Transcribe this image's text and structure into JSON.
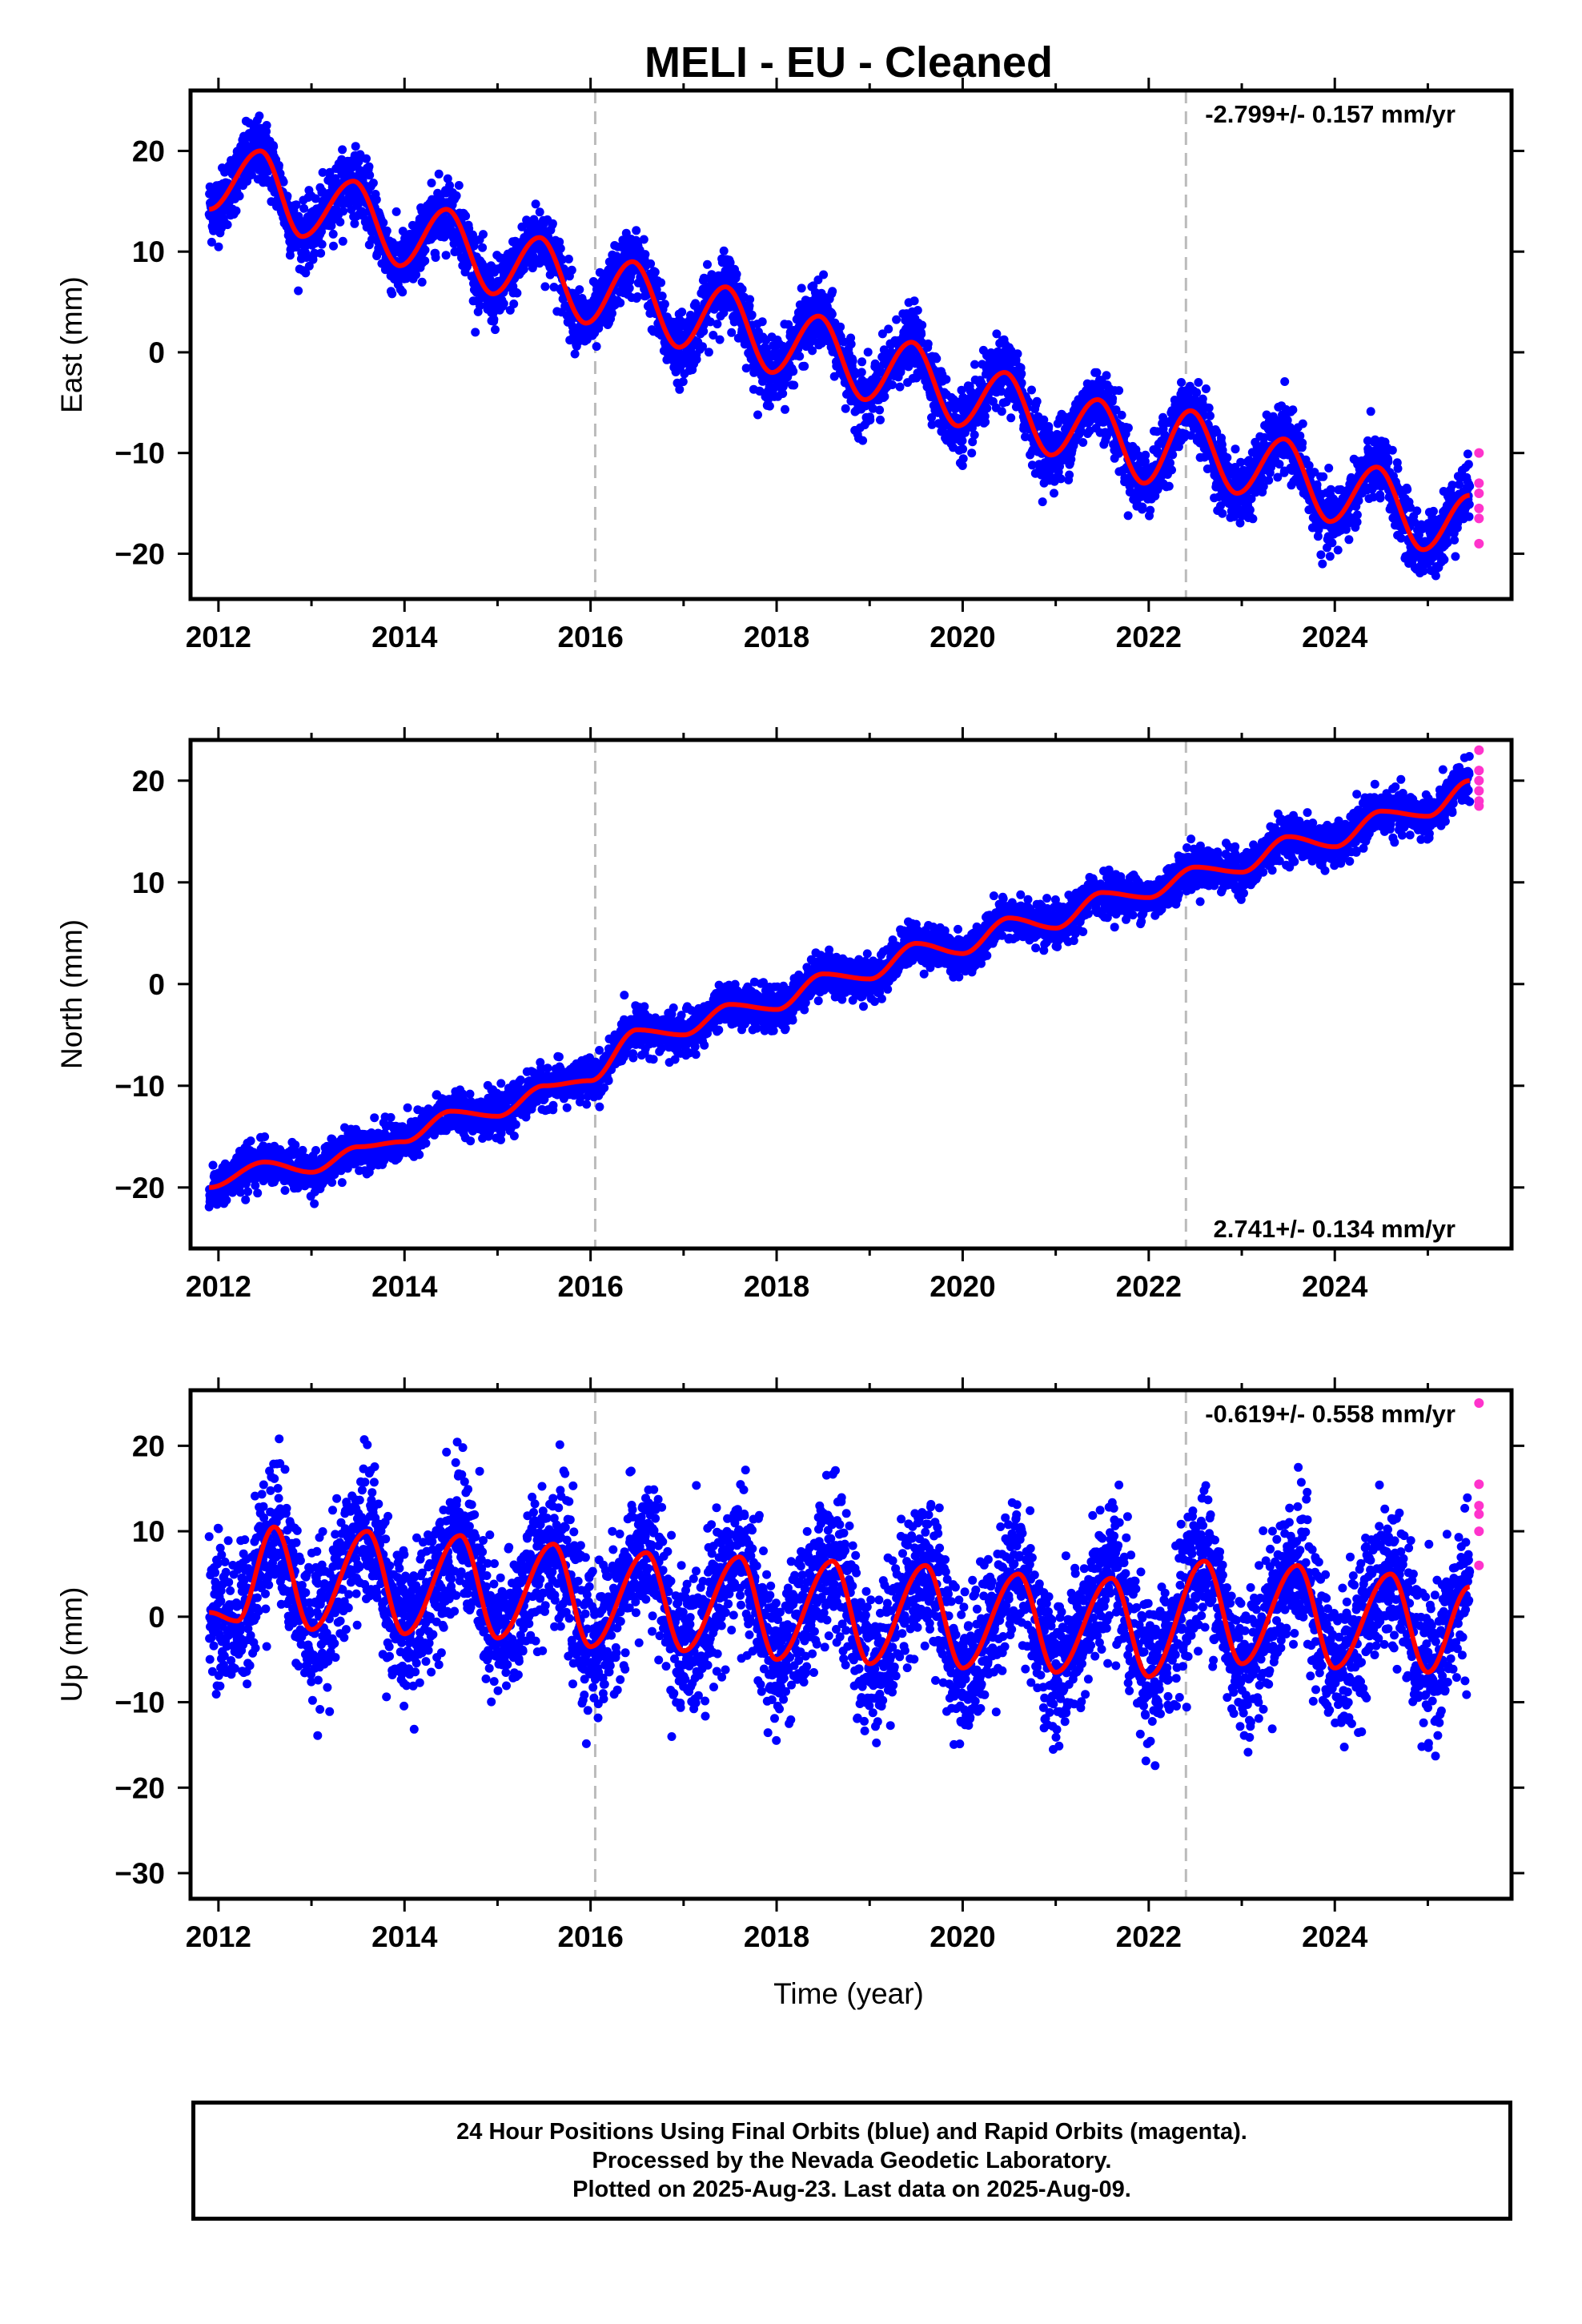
{
  "title": "MELI  - EU - Cleaned",
  "xlabel": "Time (year)",
  "colors": {
    "final": "#0000ff",
    "rapid": "#ff33cc",
    "model": "#ff0000",
    "breaks": "#bbbbbb",
    "axes": "#000000"
  },
  "caption": {
    "line1": "24 Hour Positions Using Final Orbits (blue) and Rapid Orbits (magenta).",
    "line2": "Processed by the Nevada Geodetic Laboratory.",
    "line3": "Plotted on 2025-Aug-23. Last data on 2025-Aug-09."
  },
  "chart_data": [
    {
      "type": "scatter",
      "component": "East",
      "ylabel": "East (mm)",
      "rate_label": "-2.799+/- 0.157 mm/yr",
      "rate_label_position": "top-right",
      "xlim": [
        2011.7,
        2025.9
      ],
      "ylim": [
        -24.5,
        26
      ],
      "xticks": [
        2012,
        2014,
        2016,
        2018,
        2020,
        2022,
        2024
      ],
      "yticks": [
        -20,
        -10,
        0,
        10,
        20
      ],
      "data_range": [
        2011.9,
        2025.45
      ],
      "trend": {
        "intercept_at_2012": 17.0,
        "rate_mm_per_yr": -2.799
      },
      "seasonal": {
        "amplitude": 3.5,
        "phase_year": 0.45
      },
      "scatter_noise_mm": 1.6,
      "equipment_breaks": [
        2016.05,
        2022.4
      ],
      "model_series": [
        {
          "x": 2011.9,
          "y": 14.2
        },
        {
          "x": 2012.45,
          "y": 20.0
        },
        {
          "x": 2012.9,
          "y": 11.5
        },
        {
          "x": 2013.45,
          "y": 17.0
        },
        {
          "x": 2013.95,
          "y": 8.6
        },
        {
          "x": 2014.45,
          "y": 14.2
        },
        {
          "x": 2014.95,
          "y": 5.8
        },
        {
          "x": 2015.45,
          "y": 11.4
        },
        {
          "x": 2015.95,
          "y": 2.9
        },
        {
          "x": 2016.45,
          "y": 9.0
        },
        {
          "x": 2016.95,
          "y": 0.5
        },
        {
          "x": 2017.45,
          "y": 6.5
        },
        {
          "x": 2017.95,
          "y": -2.0
        },
        {
          "x": 2018.45,
          "y": 3.6
        },
        {
          "x": 2018.95,
          "y": -4.7
        },
        {
          "x": 2019.45,
          "y": 1.0
        },
        {
          "x": 2019.95,
          "y": -7.3
        },
        {
          "x": 2020.45,
          "y": -2.0
        },
        {
          "x": 2020.95,
          "y": -10.2
        },
        {
          "x": 2021.45,
          "y": -4.7
        },
        {
          "x": 2021.95,
          "y": -13.0
        },
        {
          "x": 2022.45,
          "y": -5.8
        },
        {
          "x": 2022.95,
          "y": -14.0
        },
        {
          "x": 2023.45,
          "y": -8.6
        },
        {
          "x": 2023.95,
          "y": -16.8
        },
        {
          "x": 2024.45,
          "y": -11.4
        },
        {
          "x": 2024.95,
          "y": -19.6
        },
        {
          "x": 2025.45,
          "y": -14.2
        }
      ],
      "rapid_points": [
        {
          "x": 2025.55,
          "y": -10.0
        },
        {
          "x": 2025.55,
          "y": -13.0
        },
        {
          "x": 2025.55,
          "y": -14.0
        },
        {
          "x": 2025.55,
          "y": -15.5
        },
        {
          "x": 2025.55,
          "y": -16.5
        },
        {
          "x": 2025.55,
          "y": -19.0
        }
      ]
    },
    {
      "type": "scatter",
      "component": "North",
      "ylabel": "North (mm)",
      "rate_label": "2.741+/- 0.134 mm/yr",
      "rate_label_position": "bottom-right",
      "xlim": [
        2011.7,
        2025.9
      ],
      "ylim": [
        -26,
        24
      ],
      "xticks": [
        2012,
        2014,
        2016,
        2018,
        2020,
        2022,
        2024
      ],
      "yticks": [
        -20,
        -10,
        0,
        10,
        20
      ],
      "data_range": [
        2011.9,
        2025.45
      ],
      "trend": {
        "intercept_at_2012": -20.0,
        "rate_mm_per_yr": 2.741
      },
      "seasonal": {
        "amplitude": 0.9,
        "phase_year": 0.55
      },
      "scatter_noise_mm": 1.0,
      "equipment_breaks": [
        2016.05,
        2022.4
      ],
      "model_series": [
        {
          "x": 2011.9,
          "y": -20.0
        },
        {
          "x": 2012.5,
          "y": -17.5
        },
        {
          "x": 2013.0,
          "y": -18.5
        },
        {
          "x": 2013.5,
          "y": -16.0
        },
        {
          "x": 2014.0,
          "y": -15.5
        },
        {
          "x": 2014.5,
          "y": -12.5
        },
        {
          "x": 2015.0,
          "y": -13.0
        },
        {
          "x": 2015.5,
          "y": -10.0
        },
        {
          "x": 2016.0,
          "y": -9.5
        },
        {
          "x": 2016.5,
          "y": -4.5
        },
        {
          "x": 2017.0,
          "y": -5.0
        },
        {
          "x": 2017.5,
          "y": -2.0
        },
        {
          "x": 2018.0,
          "y": -2.5
        },
        {
          "x": 2018.5,
          "y": 1.0
        },
        {
          "x": 2019.0,
          "y": 0.5
        },
        {
          "x": 2019.5,
          "y": 4.0
        },
        {
          "x": 2020.0,
          "y": 3.0
        },
        {
          "x": 2020.5,
          "y": 6.5
        },
        {
          "x": 2021.0,
          "y": 5.5
        },
        {
          "x": 2021.5,
          "y": 9.0
        },
        {
          "x": 2022.0,
          "y": 8.5
        },
        {
          "x": 2022.5,
          "y": 11.5
        },
        {
          "x": 2023.0,
          "y": 11.0
        },
        {
          "x": 2023.5,
          "y": 14.5
        },
        {
          "x": 2024.0,
          "y": 13.5
        },
        {
          "x": 2024.5,
          "y": 17.0
        },
        {
          "x": 2025.0,
          "y": 16.5
        },
        {
          "x": 2025.45,
          "y": 20.0
        }
      ],
      "rapid_points": [
        {
          "x": 2025.55,
          "y": 23.0
        },
        {
          "x": 2025.55,
          "y": 21.0
        },
        {
          "x": 2025.55,
          "y": 20.0
        },
        {
          "x": 2025.55,
          "y": 19.0
        },
        {
          "x": 2025.55,
          "y": 18.0
        },
        {
          "x": 2025.55,
          "y": 17.5
        }
      ]
    },
    {
      "type": "scatter",
      "component": "Up",
      "ylabel": "Up (mm)",
      "rate_label": "-0.619+/- 0.558 mm/yr",
      "rate_label_position": "top-right",
      "xlim": [
        2011.7,
        2025.9
      ],
      "ylim": [
        -33,
        26.5
      ],
      "xticks": [
        2012,
        2014,
        2016,
        2018,
        2020,
        2022,
        2024
      ],
      "yticks": [
        -30,
        -20,
        -10,
        0,
        10,
        20
      ],
      "data_range": [
        2011.9,
        2025.45
      ],
      "trend": {
        "intercept_at_2012": 2.5,
        "rate_mm_per_yr": -0.619
      },
      "seasonal": {
        "amplitude": 6.0,
        "phase_year": 0.62
      },
      "scatter_noise_mm": 4.2,
      "equipment_breaks": [
        2016.05,
        2022.4
      ],
      "model_series": [
        {
          "x": 2011.9,
          "y": 0.5
        },
        {
          "x": 2012.2,
          "y": -0.5
        },
        {
          "x": 2012.6,
          "y": 10.5
        },
        {
          "x": 2013.0,
          "y": -1.5
        },
        {
          "x": 2013.6,
          "y": 10.0
        },
        {
          "x": 2014.0,
          "y": -2.0
        },
        {
          "x": 2014.6,
          "y": 9.5
        },
        {
          "x": 2015.0,
          "y": -2.5
        },
        {
          "x": 2015.6,
          "y": 8.5
        },
        {
          "x": 2016.0,
          "y": -3.5
        },
        {
          "x": 2016.6,
          "y": 7.5
        },
        {
          "x": 2017.0,
          "y": -4.0
        },
        {
          "x": 2017.6,
          "y": 7.0
        },
        {
          "x": 2018.0,
          "y": -5.0
        },
        {
          "x": 2018.6,
          "y": 6.5
        },
        {
          "x": 2019.0,
          "y": -5.5
        },
        {
          "x": 2019.6,
          "y": 6.0
        },
        {
          "x": 2020.0,
          "y": -6.0
        },
        {
          "x": 2020.6,
          "y": 5.0
        },
        {
          "x": 2021.0,
          "y": -6.5
        },
        {
          "x": 2021.6,
          "y": 4.5
        },
        {
          "x": 2022.0,
          "y": -7.0
        },
        {
          "x": 2022.6,
          "y": 6.5
        },
        {
          "x": 2023.0,
          "y": -5.5
        },
        {
          "x": 2023.6,
          "y": 6.0
        },
        {
          "x": 2024.0,
          "y": -6.0
        },
        {
          "x": 2024.6,
          "y": 5.0
        },
        {
          "x": 2025.0,
          "y": -6.5
        },
        {
          "x": 2025.45,
          "y": 3.5
        }
      ],
      "rapid_points": [
        {
          "x": 2025.55,
          "y": 25.0
        },
        {
          "x": 2025.55,
          "y": 15.5
        },
        {
          "x": 2025.55,
          "y": 13.0
        },
        {
          "x": 2025.55,
          "y": 12.0
        },
        {
          "x": 2025.55,
          "y": 10.0
        },
        {
          "x": 2025.55,
          "y": 6.0
        }
      ]
    }
  ]
}
